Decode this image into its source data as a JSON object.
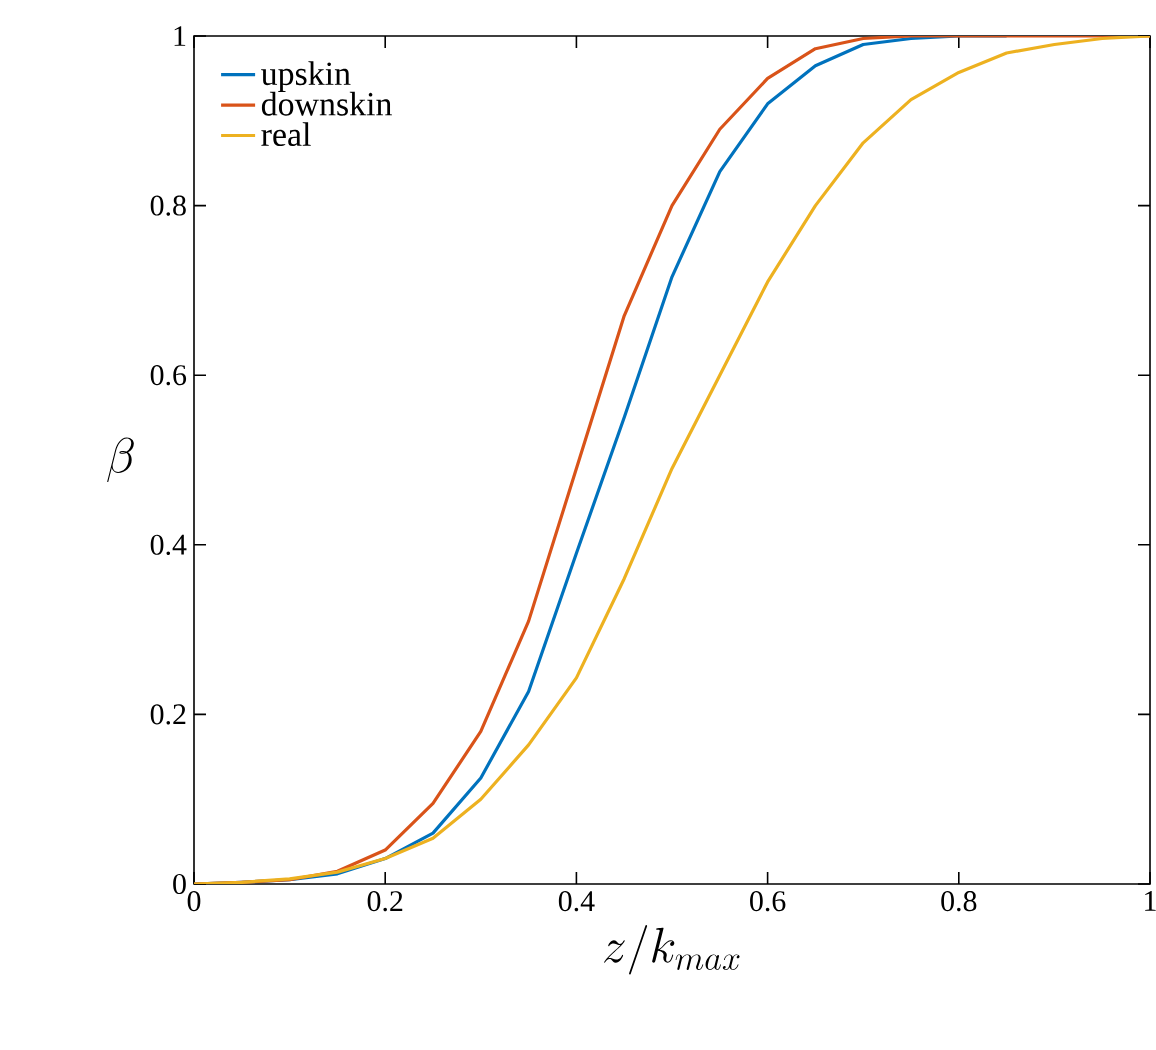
{
  "chart_data": {
    "type": "line",
    "xlabel": "z/k_{max}",
    "ylabel": "\\beta",
    "xlim": [
      0,
      1
    ],
    "ylim": [
      0,
      1
    ],
    "xticks": [
      0,
      0.2,
      0.4,
      0.6,
      0.8,
      1
    ],
    "yticks": [
      0,
      0.2,
      0.4,
      0.6,
      0.8,
      1
    ],
    "grid": false,
    "legend": "top left",
    "marker": "none",
    "line_style": "solid",
    "x": [
      0,
      0.05,
      0.1,
      0.15,
      0.2,
      0.25,
      0.3,
      0.35,
      0.4,
      0.45,
      0.5,
      0.55,
      0.6,
      0.65,
      0.7,
      0.75,
      0.8,
      0.85,
      0.9,
      0.95,
      1
    ],
    "series": [
      {
        "name": "upskin",
        "color": "#0072bd",
        "values": [
          0,
          0.002,
          0.005,
          0.012,
          0.03,
          0.06,
          0.125,
          0.227,
          0.39,
          0.55,
          0.716,
          0.84,
          0.92,
          0.965,
          0.99,
          0.997,
          1,
          1,
          null,
          null,
          null
        ]
      },
      {
        "name": "downskin",
        "color": "#d95319",
        "values": [
          0,
          0.002,
          0.005,
          0.015,
          0.04,
          0.095,
          0.18,
          0.31,
          0.49,
          0.67,
          0.8,
          0.89,
          0.95,
          0.985,
          0.997,
          1,
          1,
          1,
          1,
          1,
          1
        ]
      },
      {
        "name": "real",
        "color": "#edb120",
        "values": [
          0,
          0.002,
          0.006,
          0.014,
          0.03,
          0.054,
          0.1,
          0.164,
          0.243,
          0.36,
          0.49,
          0.6,
          0.71,
          0.8,
          0.874,
          0.925,
          0.957,
          0.98,
          0.99,
          0.997,
          1
        ]
      }
    ]
  }
}
